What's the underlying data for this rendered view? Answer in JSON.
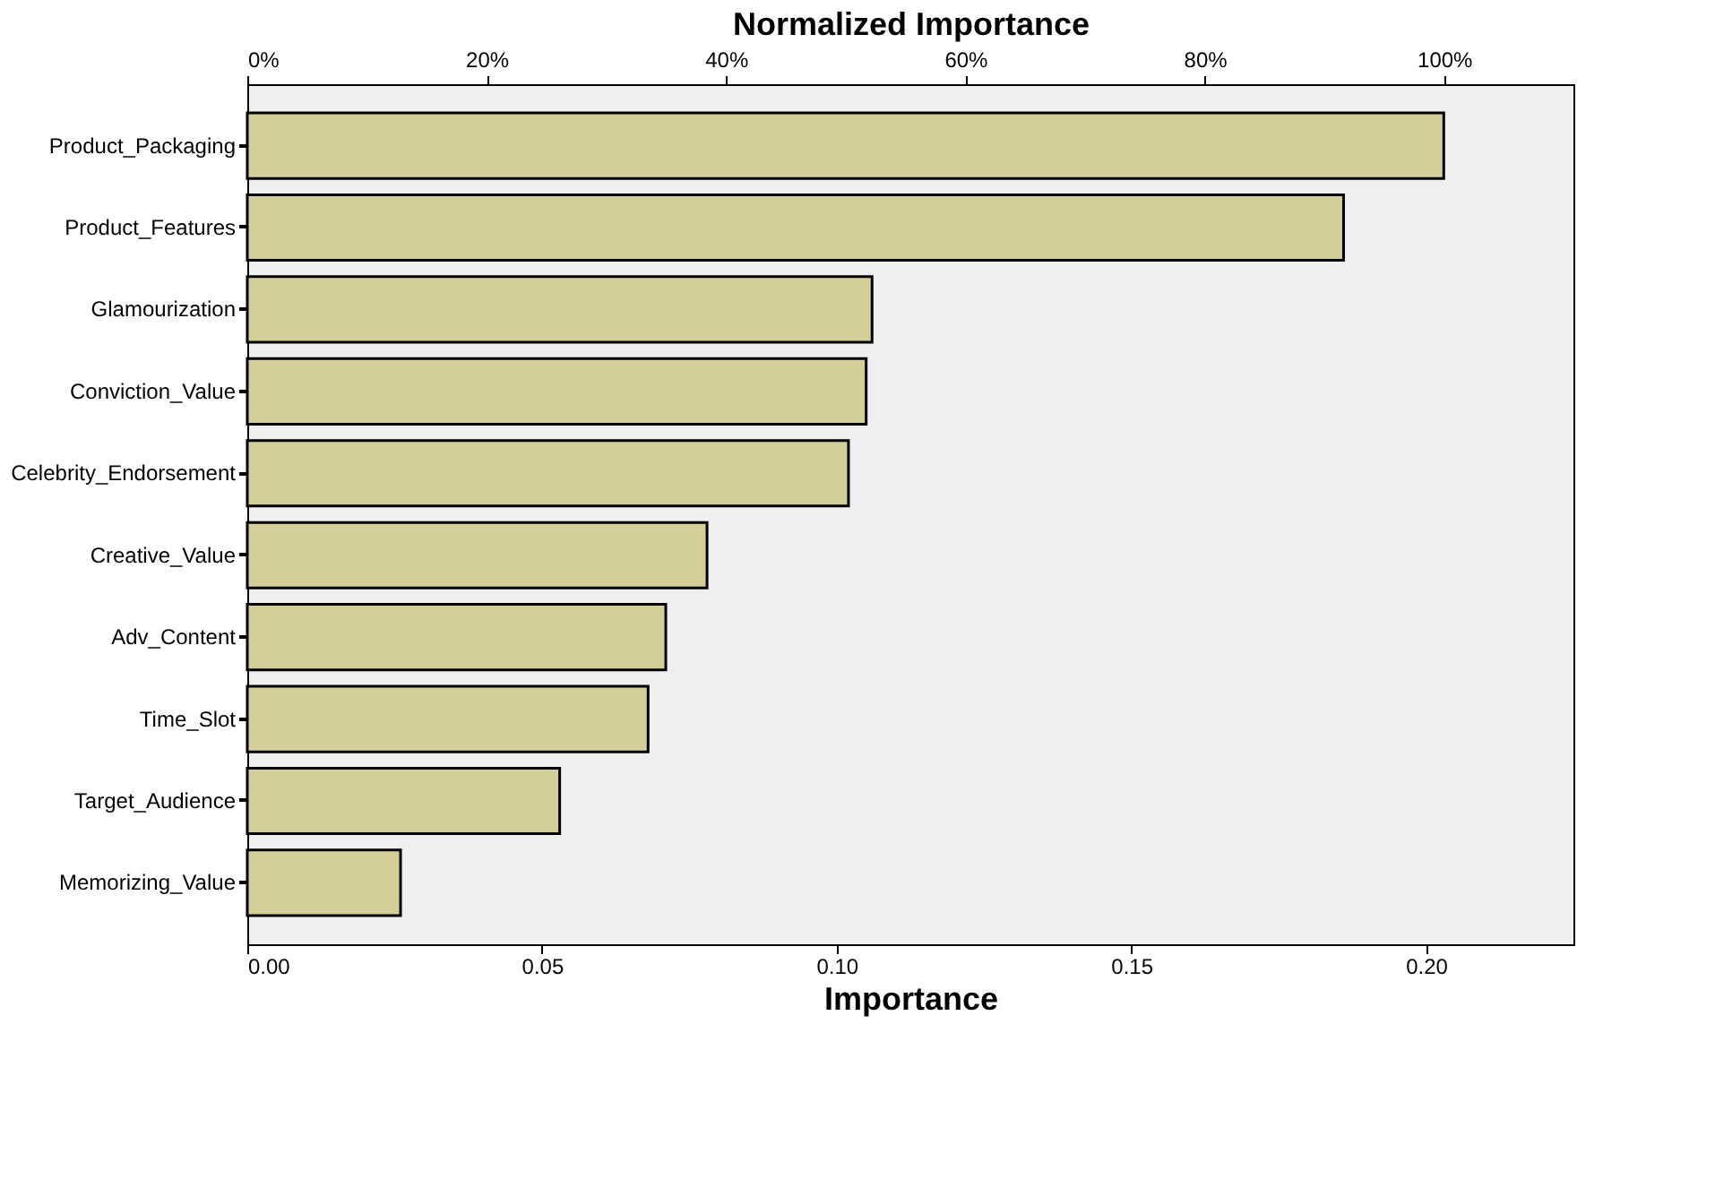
{
  "chart_data": {
    "type": "bar",
    "orientation": "horizontal",
    "xlabel": "Importance",
    "x2label": "Normalized Importance",
    "categories": [
      "Product_Packaging",
      "Product_Features",
      "Glamourization",
      "Conviction_Value",
      "Celebrity_Endorsement",
      "Creative_Value",
      "Adv_Content",
      "Time_Slot",
      "Target_Audience",
      "Memorizing_Value"
    ],
    "values": [
      0.203,
      0.186,
      0.106,
      0.105,
      0.102,
      0.078,
      0.071,
      0.068,
      0.053,
      0.026
    ],
    "color": "#d4cf98",
    "xlim": [
      0,
      0.225
    ],
    "xticks": [
      {
        "value": 0,
        "label": "0.00"
      },
      {
        "value": 0.05,
        "label": "0.05"
      },
      {
        "value": 0.1,
        "label": "0.10"
      },
      {
        "value": 0.15,
        "label": "0.15"
      },
      {
        "value": 0.2,
        "label": "0.20"
      }
    ],
    "x2lim": [
      0,
      110.8
    ],
    "x2ticks": [
      {
        "value": 0,
        "label": "0%"
      },
      {
        "value": 20,
        "label": "20%"
      },
      {
        "value": 40,
        "label": "40%"
      },
      {
        "value": 60,
        "label": "60%"
      },
      {
        "value": 80,
        "label": "80%"
      },
      {
        "value": 100,
        "label": "100%"
      }
    ],
    "grid": false
  }
}
